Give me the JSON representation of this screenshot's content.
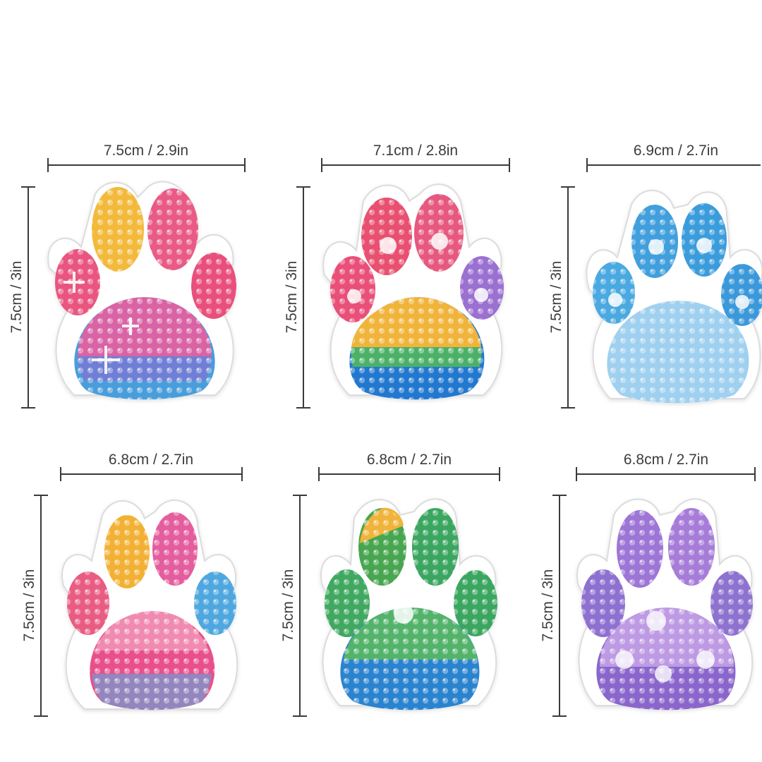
{
  "items": [
    {
      "width_label": "7.5cm / 2.9in",
      "height_label": "7.5cm / 3in",
      "toes": [
        "#f3b93a",
        "#e9557f",
        "#e95a86",
        "#e94f7c"
      ],
      "pad_top": "#ea5d93",
      "pad_bottom": "#2f8fd6",
      "style": "rainbow-stars"
    },
    {
      "width_label": "7.1cm / 2.8in",
      "height_label": "7.5cm / 3in",
      "toes": [
        "#e94f78",
        "#e8506f",
        "#e7597e",
        "#9a6fd1"
      ],
      "pad_top": "#f1b43a",
      "pad_bottom": "#2378cf",
      "style": "sunset"
    },
    {
      "width_label": "6.9cm / 2.7in",
      "height_label": "7.5cm / 3in",
      "toes": [
        "#4aa9e0",
        "#3f9fdc",
        "#3b9cdc",
        "#3a98da"
      ],
      "pad_top": "#bfe1f4",
      "pad_bottom": "#8cc8ec",
      "style": "ice-blue"
    },
    {
      "width_label": "6.8cm / 2.7in",
      "height_label": "7.5cm / 3in",
      "toes": [
        "#e95c82",
        "#f2b134",
        "#e45d9e",
        "#4fa7df"
      ],
      "pad_top": "#e9508a",
      "pad_bottom": "#f2a7c4",
      "style": "pink-gold"
    },
    {
      "width_label": "6.8cm / 2.7in",
      "height_label": "7.5cm / 3in",
      "toes": [
        "#3fa860",
        "#f0b33a",
        "#47a64f",
        "#3aa660"
      ],
      "pad_top": "#52b36b",
      "pad_bottom": "#2c83cf",
      "style": "green-ocean"
    },
    {
      "width_label": "6.8cm / 2.7in",
      "height_label": "7.5cm / 3in",
      "toes": [
        "#8d6fd0",
        "#9d75d6",
        "#a67bd8",
        "#8e72cf"
      ],
      "pad_top": "#c6a3e6",
      "pad_bottom": "#8a66cc",
      "style": "lilac"
    }
  ]
}
